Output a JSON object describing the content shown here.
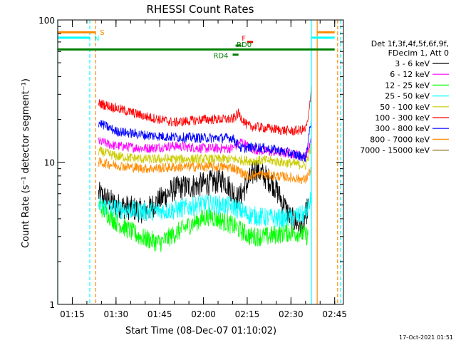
{
  "chart_data": {
    "type": "line",
    "title": "RHESSI Count Rates",
    "xlabel": "Start Time (08-Dec-07 01:10:02)",
    "ylabel": "Count Rate (s⁻¹ detector segment⁻¹)",
    "y_scale": "log",
    "ylim": [
      1,
      100
    ],
    "y_ticks": [
      "1",
      "10",
      "100"
    ],
    "x_range": [
      "01:10",
      "02:48"
    ],
    "x_ticks": [
      "01:15",
      "01:30",
      "01:45",
      "02:00",
      "02:15",
      "02:30",
      "02:45"
    ],
    "legend_position": "right",
    "legend_header": [
      "Det 1f,3f,4f,5f,6f,9f,",
      "FDecim 1, Att 0"
    ],
    "timestamp": "17-Oct-2021 01:51",
    "colors": {
      "axes": "#000000",
      "cyan": "#00ffff",
      "orange": "#ff8c00",
      "green": "#008000",
      "red": "#ff0000"
    },
    "series": [
      {
        "name": "3 - 6 keV",
        "color": "#000000",
        "x": [
          "01:24",
          "01:30",
          "01:40",
          "01:50",
          "02:00",
          "02:07",
          "02:12",
          "02:18",
          "02:24",
          "02:30",
          "02:34",
          "02:36"
        ],
        "y": [
          6,
          5,
          4.5,
          6.5,
          7,
          7.5,
          5.5,
          9,
          7,
          4,
          3.5,
          5
        ]
      },
      {
        "name": "6 - 12 keV",
        "color": "#ff00ff",
        "x": [
          "01:24",
          "01:30",
          "01:40",
          "01:50",
          "02:00",
          "02:10",
          "02:13",
          "02:16",
          "02:20",
          "02:30",
          "02:35",
          "02:37"
        ],
        "y": [
          14,
          13,
          12.5,
          13,
          12.5,
          12.5,
          14,
          12.5,
          12,
          11.5,
          11,
          14
        ]
      },
      {
        "name": "12 - 25 keV",
        "color": "#00ff00",
        "x": [
          "01:24",
          "01:30",
          "01:38",
          "01:45",
          "01:55",
          "02:02",
          "02:10",
          "02:16",
          "02:22",
          "02:28",
          "02:33",
          "02:36"
        ],
        "y": [
          5,
          3.8,
          3.0,
          2.7,
          3.6,
          4.2,
          3.6,
          3.0,
          3.0,
          3.2,
          3.2,
          3.0
        ]
      },
      {
        "name": "25 - 50 keV",
        "color": "#00ffff",
        "x": [
          "01:24",
          "01:30",
          "01:40",
          "01:50",
          "02:00",
          "02:10",
          "02:15",
          "02:20",
          "02:28",
          "02:35",
          "02:37"
        ],
        "y": [
          5,
          4.7,
          4.5,
          4.6,
          5.1,
          4.9,
          4.3,
          4.1,
          4.0,
          4.3,
          5.5
        ]
      },
      {
        "name": "50 - 100 keV",
        "color": "#cccc00",
        "x": [
          "01:24",
          "01:30",
          "01:40",
          "01:50",
          "02:00",
          "02:10",
          "02:16",
          "02:22",
          "02:30",
          "02:35",
          "02:37"
        ],
        "y": [
          12,
          11,
          10.5,
          10.5,
          10.5,
          10.5,
          10.2,
          10.3,
          9.8,
          9.5,
          13
        ]
      },
      {
        "name": "100 - 300 keV",
        "color": "#ff0000",
        "x": [
          "01:24",
          "01:30",
          "01:40",
          "01:50",
          "02:00",
          "02:10",
          "02:12",
          "02:15",
          "02:20",
          "02:30",
          "02:35",
          "02:36",
          "02:37"
        ],
        "y": [
          26,
          24,
          21,
          19,
          20,
          20,
          22,
          18,
          17.5,
          16.5,
          17,
          20,
          35
        ]
      },
      {
        "name": "300 - 800 keV",
        "color": "#0000ff",
        "x": [
          "01:24",
          "01:30",
          "01:40",
          "01:50",
          "02:00",
          "02:10",
          "02:13",
          "02:18",
          "02:25",
          "02:30",
          "02:35",
          "02:37"
        ],
        "y": [
          19,
          16.5,
          15.5,
          15,
          14.8,
          14.8,
          12.5,
          12.8,
          12.2,
          11.5,
          10.8,
          20
        ]
      },
      {
        "name": "800 - 7000 keV",
        "color": "#ff8c00",
        "x": [
          "01:24",
          "01:30",
          "01:40",
          "01:50",
          "02:00",
          "02:10",
          "02:15",
          "02:20",
          "02:30",
          "02:35",
          "02:37"
        ],
        "y": [
          10,
          9.5,
          9,
          9.2,
          9.3,
          9.2,
          8.0,
          8.2,
          7.8,
          7.5,
          9
        ]
      },
      {
        "name": "7000 - 15000 keV",
        "color": "#8b6914",
        "x": [],
        "y": []
      }
    ],
    "attenuator_bars": [
      {
        "label": "S",
        "color": "#ff8c00",
        "level": 82,
        "segments": [
          [
            "01:10",
            "01:23"
          ],
          [
            "02:39",
            "02:45"
          ]
        ]
      },
      {
        "label": "N",
        "color": "#00ffff",
        "level": 75,
        "segments": [
          [
            "01:10",
            "01:21"
          ],
          [
            "02:37",
            "02:45"
          ]
        ]
      },
      {
        "label": "",
        "color": "#008000",
        "level": 62,
        "segments": [
          [
            "01:10",
            "02:45"
          ]
        ]
      },
      {
        "label": "F",
        "color": "#ff0000",
        "level": 70,
        "segments": [
          [
            "02:15",
            "02:17"
          ]
        ]
      },
      {
        "label": "RD0",
        "color": "#008000",
        "level": 66,
        "segments": [
          [
            "02:11",
            "02:13"
          ]
        ]
      },
      {
        "label": "RD4",
        "color": "#008000",
        "level": 57,
        "segments": [
          [
            "02:10",
            "02:12"
          ]
        ]
      }
    ],
    "vertical_lines": [
      {
        "time": "01:10",
        "color": "#00ffff",
        "style": "solid"
      },
      {
        "time": "01:21",
        "color": "#00ffff",
        "style": "dashed"
      },
      {
        "time": "01:23",
        "color": "#ff8c00",
        "style": "dashed"
      },
      {
        "time": "02:37",
        "color": "#00ffff",
        "style": "solid"
      },
      {
        "time": "02:39",
        "color": "#ff8c00",
        "style": "solid"
      },
      {
        "time": "02:47",
        "color": "#00ffff",
        "style": "dashed"
      },
      {
        "time": "02:46",
        "color": "#ff8c00",
        "style": "dashed"
      }
    ]
  }
}
